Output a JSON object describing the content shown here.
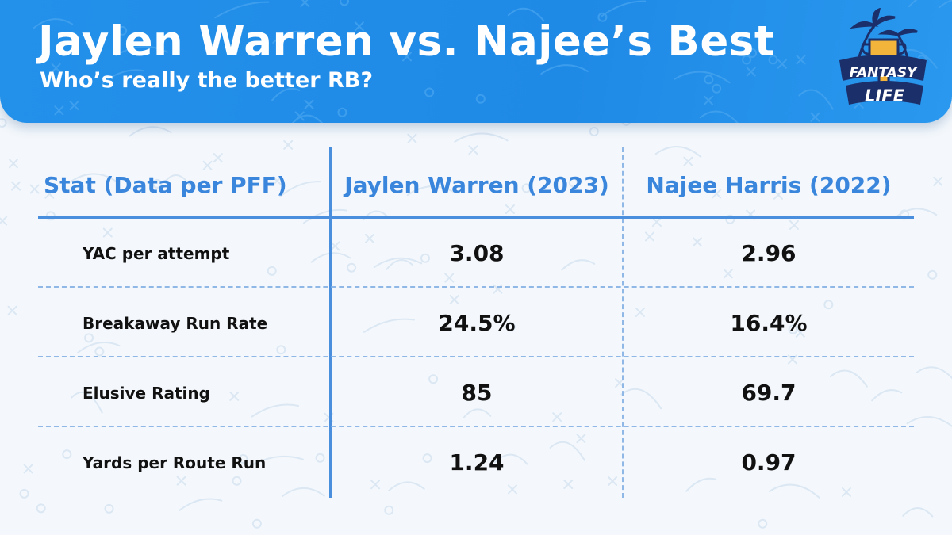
{
  "header": {
    "title": "Jaylen Warren vs. Najee’s Best",
    "subtitle": "Who’s really the better RB?"
  },
  "logo": {
    "name": "Fantasy Life",
    "word_top": "FANTASY",
    "word_bottom": "LIFE",
    "colors": {
      "navy": "#1b2f6b",
      "gold": "#f2b43a",
      "white": "#ffffff"
    }
  },
  "colors": {
    "header_blue": "#2390ea",
    "accent_blue": "#3a86dc",
    "text_dark": "#111111"
  },
  "chart_data": {
    "type": "table",
    "columns": [
      "Stat (Data per PFF)",
      "Jaylen Warren (2023)",
      "Najee Harris (2022)"
    ],
    "rows": [
      {
        "stat": "YAC per attempt",
        "warren": "3.08",
        "harris": "2.96"
      },
      {
        "stat": "Breakaway Run Rate",
        "warren": "24.5%",
        "harris": "16.4%"
      },
      {
        "stat": "Elusive Rating",
        "warren": "85",
        "harris": "69.7"
      },
      {
        "stat": "Yards per Route Run",
        "warren": "1.24",
        "harris": "0.97"
      }
    ]
  }
}
